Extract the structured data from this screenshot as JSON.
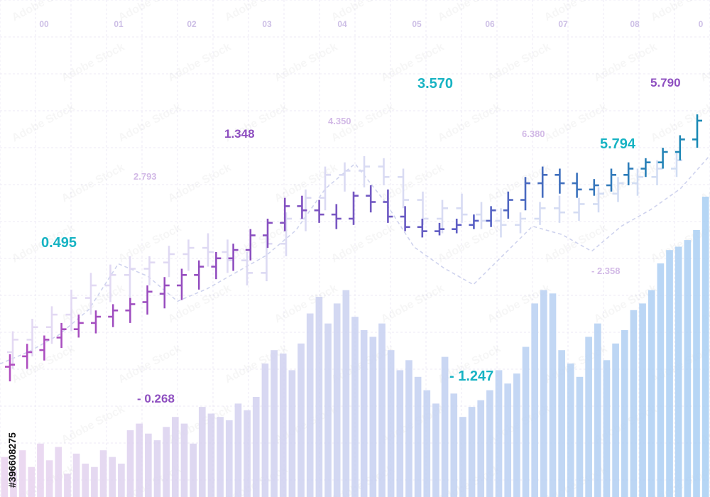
{
  "chart_data": {
    "type": "ohlc",
    "title": "",
    "x_tick_labels": [
      "00",
      "01",
      "02",
      "03",
      "04",
      "05",
      "06",
      "07",
      "08",
      "0"
    ],
    "y_scale": "unlabeled",
    "grid": true,
    "legend": "none",
    "colors": {
      "purple": "#8e4fc0",
      "magenta": "#b14fc0",
      "indigo": "#5b5fc4",
      "teal": "#1a8ab5",
      "cyan": "#17b3c3",
      "volume_start": "#e9d2ee",
      "volume_end": "#a9cff3",
      "faded_bars": "#e3d7f3",
      "faded_bars_right": "#cfdcf3",
      "trend_line": "#cfd3ee"
    },
    "series": [
      {
        "role": "price_bars_foreground",
        "values_open_high_low_close": [
          [
            0.5,
            1.1,
            -0.2,
            0.6
          ],
          [
            1.0,
            1.6,
            0.4,
            1.2
          ],
          [
            1.3,
            2.0,
            0.8,
            1.8
          ],
          [
            1.9,
            2.6,
            1.4,
            2.3
          ],
          [
            2.3,
            3.0,
            1.9,
            2.6
          ],
          [
            2.6,
            3.2,
            2.1,
            2.9
          ],
          [
            2.9,
            3.5,
            2.4,
            3.2
          ],
          [
            3.2,
            3.8,
            2.6,
            3.5
          ],
          [
            3.6,
            4.4,
            3.0,
            4.1
          ],
          [
            4.0,
            4.8,
            3.3,
            4.4
          ],
          [
            4.4,
            5.2,
            3.7,
            4.9
          ],
          [
            4.9,
            5.6,
            4.2,
            5.3
          ],
          [
            5.3,
            6.0,
            4.7,
            5.7
          ],
          [
            5.7,
            6.4,
            5.1,
            6.1
          ],
          [
            6.1,
            7.1,
            5.6,
            6.8
          ],
          [
            6.8,
            7.6,
            6.2,
            7.4
          ],
          [
            7.4,
            8.6,
            7.0,
            8.2
          ],
          [
            8.2,
            8.7,
            7.6,
            8.0
          ],
          [
            8.0,
            8.5,
            7.4,
            7.8
          ],
          [
            7.8,
            8.3,
            7.1,
            7.6
          ],
          [
            7.6,
            8.9,
            7.3,
            8.7
          ],
          [
            8.7,
            9.2,
            7.9,
            8.4
          ],
          [
            8.4,
            9.0,
            7.4,
            7.7
          ],
          [
            7.7,
            8.2,
            7.0,
            7.2
          ],
          [
            7.2,
            7.6,
            6.7,
            7.0
          ],
          [
            7.0,
            7.4,
            6.8,
            7.1
          ],
          [
            7.1,
            7.6,
            6.9,
            7.3
          ],
          [
            7.3,
            7.8,
            7.1,
            7.5
          ],
          [
            7.5,
            8.2,
            7.2,
            8.0
          ],
          [
            8.0,
            8.9,
            7.6,
            8.5
          ],
          [
            8.5,
            9.6,
            8.0,
            9.3
          ],
          [
            9.3,
            10.1,
            8.6,
            9.7
          ],
          [
            9.7,
            10.0,
            8.8,
            9.3
          ],
          [
            9.3,
            9.8,
            8.6,
            9.0
          ],
          [
            9.0,
            9.5,
            8.7,
            9.2
          ],
          [
            9.2,
            10.0,
            8.9,
            9.7
          ],
          [
            9.7,
            10.3,
            9.2,
            10.0
          ],
          [
            10.0,
            10.5,
            9.6,
            10.3
          ],
          [
            10.3,
            11.0,
            10.0,
            10.8
          ],
          [
            10.8,
            11.6,
            10.4,
            11.4
          ],
          [
            11.4,
            12.6,
            11.0,
            12.3
          ]
        ]
      },
      {
        "role": "price_bars_background",
        "values_open_high_low_close": [
          [
            1.2,
            2.2,
            0.4,
            1.8
          ],
          [
            1.8,
            2.8,
            1.0,
            2.4
          ],
          [
            2.4,
            3.4,
            1.6,
            3.0
          ],
          [
            3.0,
            4.2,
            2.2,
            3.8
          ],
          [
            3.8,
            5.0,
            3.0,
            4.4
          ],
          [
            4.4,
            5.4,
            3.6,
            4.9
          ],
          [
            4.9,
            5.8,
            3.8,
            5.2
          ],
          [
            5.2,
            5.8,
            4.4,
            5.5
          ],
          [
            5.5,
            6.3,
            4.8,
            5.9
          ],
          [
            5.9,
            6.6,
            5.1,
            6.2
          ],
          [
            6.2,
            6.9,
            5.3,
            6.0
          ],
          [
            6.0,
            6.6,
            5.0,
            5.6
          ],
          [
            5.6,
            6.0,
            4.4,
            5.0
          ],
          [
            5.0,
            6.8,
            4.6,
            6.4
          ],
          [
            6.4,
            7.9,
            5.8,
            7.6
          ],
          [
            7.6,
            9.0,
            7.0,
            8.6
          ],
          [
            8.6,
            10.1,
            8.0,
            9.7
          ],
          [
            9.7,
            10.3,
            8.9,
            9.9
          ],
          [
            9.9,
            10.6,
            9.1,
            10.1
          ],
          [
            10.1,
            10.5,
            9.2,
            9.6
          ],
          [
            9.6,
            10.0,
            8.1,
            8.5
          ],
          [
            8.5,
            8.9,
            7.3,
            7.6
          ],
          [
            7.6,
            8.5,
            6.9,
            8.1
          ],
          [
            8.1,
            8.8,
            7.4,
            7.8
          ],
          [
            7.8,
            8.4,
            7.1,
            7.5
          ],
          [
            7.5,
            8.1,
            6.7,
            7.3
          ],
          [
            7.3,
            7.9,
            6.9,
            7.6
          ],
          [
            7.6,
            8.4,
            7.3,
            8.1
          ],
          [
            8.1,
            8.7,
            7.4,
            7.9
          ],
          [
            7.9,
            8.6,
            7.5,
            8.3
          ],
          [
            8.3,
            9.1,
            7.9,
            8.8
          ],
          [
            8.8,
            9.6,
            8.4,
            9.3
          ],
          [
            9.3,
            10.0,
            8.7,
            9.6
          ],
          [
            9.6,
            10.4,
            9.2,
            10.0
          ],
          [
            10.0,
            10.8,
            9.6,
            10.4
          ]
        ]
      },
      {
        "role": "volume",
        "values": [
          12,
          8,
          14,
          9,
          16,
          11,
          15,
          7,
          13,
          10,
          9,
          14,
          12,
          10,
          20,
          22,
          19,
          17,
          21,
          24,
          22,
          16,
          27,
          25,
          24,
          23,
          28,
          26,
          30,
          40,
          44,
          43,
          38,
          46,
          55,
          60,
          52,
          58,
          62,
          54,
          50,
          48,
          52,
          44,
          38,
          41,
          36,
          32,
          28,
          42,
          31,
          24,
          27,
          29,
          32,
          38,
          34,
          37,
          45,
          58,
          62,
          61,
          44,
          40,
          36,
          48,
          52,
          41,
          46,
          50,
          56,
          58,
          62,
          70,
          74,
          75,
          77,
          80,
          90
        ]
      },
      {
        "role": "trend_line",
        "values": [
          2.0,
          2.6,
          3.4,
          4.6,
          6.8,
          6.2,
          5.0,
          5.6,
          6.4,
          7.2,
          8.4,
          10.4,
          11.6,
          9.8,
          7.6,
          6.6,
          5.8,
          7.2,
          8.6,
          8.2,
          7.4,
          8.6,
          9.4,
          10.4,
          12.0
        ]
      }
    ],
    "annotations": [
      {
        "text": "0.495",
        "color": "cyan",
        "prominence": "strong"
      },
      {
        "text": "2.793",
        "color": "purple",
        "prominence": "faded"
      },
      {
        "text": "1.348",
        "color": "purple",
        "prominence": "strong"
      },
      {
        "text": "4.350",
        "color": "purple",
        "prominence": "faded"
      },
      {
        "text": "3.570",
        "color": "cyan",
        "prominence": "strong"
      },
      {
        "text": "6.380",
        "color": "purple",
        "prominence": "faded"
      },
      {
        "text": "5.794",
        "color": "cyan",
        "prominence": "strong"
      },
      {
        "text": "5.790",
        "color": "purple",
        "prominence": "strong"
      },
      {
        "text": "- 2.358",
        "color": "purple",
        "prominence": "faded"
      },
      {
        "text": "- 0.268",
        "color": "purple",
        "prominence": "strong"
      },
      {
        "text": "- 1.247",
        "color": "cyan",
        "prominence": "strong"
      }
    ]
  },
  "watermark": {
    "text": "#396608275",
    "logo_text": "Adobe Stock"
  }
}
